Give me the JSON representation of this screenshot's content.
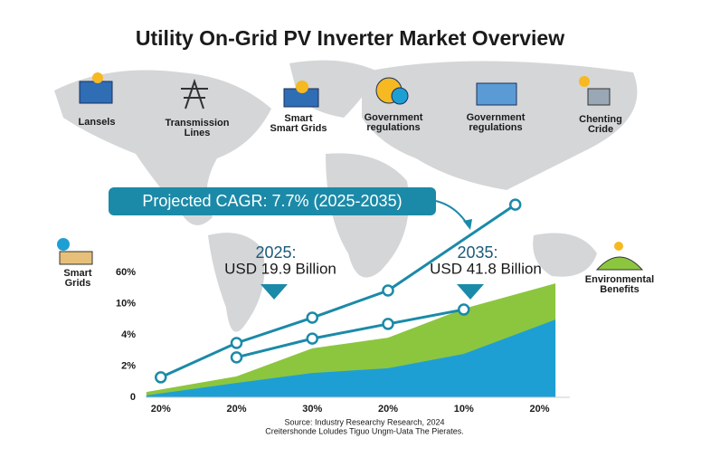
{
  "title": "Utility On-Grid PV Inverter Market Overview",
  "icons": [
    {
      "lines": [
        "Lansels"
      ]
    },
    {
      "lines": [
        "Transmission",
        "Lines"
      ]
    },
    {
      "lines": [
        "Smart",
        "Smart Grids"
      ]
    },
    {
      "lines": [
        "Government",
        "regulations"
      ]
    },
    {
      "lines": [
        "Government",
        "regulations"
      ]
    },
    {
      "lines": [
        "Chenting",
        "Cride"
      ]
    },
    {
      "lines": [
        "Smart",
        "Grids"
      ]
    },
    {
      "lines": [
        "Environmental",
        "Benefits"
      ]
    }
  ],
  "cagr_callout": "Projected CAGR: 7.7% (2025-2035)",
  "callouts": [
    {
      "year": "2025:",
      "value": "USD 19.9 Billion"
    },
    {
      "year": "2035:",
      "value": "USD 41.8 Billion"
    }
  ],
  "source": [
    "Source: Industry Researchy Research, 2024",
    "Creitershonde Loludes Tiguo Ungm-Uata The Pierates."
  ],
  "chart_data": {
    "type": "area",
    "xlim": [
      -0.2,
      5.4
    ],
    "xticks": [
      {
        "value": 0,
        "label": "20%"
      },
      {
        "value": 1,
        "label": "20%"
      },
      {
        "value": 2,
        "label": "30%"
      },
      {
        "value": 3,
        "label": "20%"
      },
      {
        "value": 4,
        "label": "10%"
      },
      {
        "value": 5,
        "label": "20%"
      }
    ],
    "ylim": [
      0,
      4
    ],
    "yticks": [
      {
        "value": 0,
        "label": "0"
      },
      {
        "value": 1,
        "label": "2%"
      },
      {
        "value": 2,
        "label": "4%"
      },
      {
        "value": 3,
        "label": "10%"
      },
      {
        "value": 4,
        "label": "60%"
      }
    ],
    "areas": [
      {
        "color": "#8cc63f",
        "x": [
          -0.19,
          1,
          2,
          3,
          4,
          5.21
        ],
        "values": [
          0.17,
          0.67,
          1.57,
          1.91,
          2.84,
          3.65
        ]
      },
      {
        "color": "#1e9fd4",
        "x": [
          -0.19,
          1,
          2,
          3,
          4,
          5.21
        ],
        "values": [
          0.06,
          0.46,
          0.78,
          0.93,
          1.39,
          2.49
        ]
      }
    ],
    "lines": [
      {
        "color": "#1b8aa8",
        "x": [
          0,
          1,
          2,
          3,
          4.68
        ],
        "values": [
          0.64,
          1.74,
          2.55,
          3.42,
          6.17
        ]
      },
      {
        "color": "#1b8aa8",
        "x": [
          1,
          2,
          3,
          4
        ],
        "values": [
          1.28,
          1.88,
          2.35,
          2.81
        ]
      }
    ]
  }
}
